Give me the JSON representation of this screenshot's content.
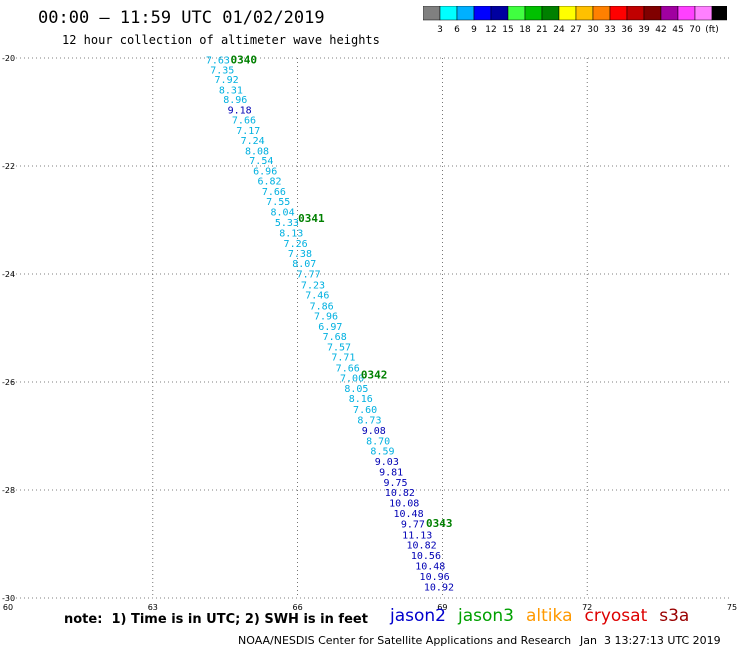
{
  "header": {
    "title": "00:00 – 11:59 UTC 01/02/2019",
    "subtitle": "12 hour collection of altimeter wave heights"
  },
  "legend": {
    "colors": [
      "#808080",
      "#00ffff",
      "#00b0ff",
      "#0000ff",
      "#0000a0",
      "#40ff40",
      "#00c000",
      "#008000",
      "#ffff00",
      "#ffc000",
      "#ff8000",
      "#ff0000",
      "#c00000",
      "#800000",
      "#a000a0",
      "#ff40ff",
      "#ff80ff",
      "#000000"
    ],
    "labels": [
      "3",
      "6",
      "9",
      "12",
      "15",
      "18",
      "21",
      "24",
      "27",
      "30",
      "33",
      "36",
      "39",
      "42",
      "45",
      "70",
      "(ft)"
    ]
  },
  "chart_data": {
    "type": "scatter",
    "xlim": [
      60,
      75
    ],
    "ylim": [
      -30,
      -20
    ],
    "x_ticks": [
      60,
      63,
      66,
      69,
      72,
      75
    ],
    "y_ticks": [
      -20,
      -22,
      -24,
      -26,
      -28,
      -30
    ],
    "grid": true,
    "points": [
      {
        "x": 64.1,
        "y": -20.03,
        "v": "7.63"
      },
      {
        "x": 64.19,
        "y": -20.21,
        "v": "7.35"
      },
      {
        "x": 64.28,
        "y": -20.39,
        "v": "7.92"
      },
      {
        "x": 64.37,
        "y": -20.58,
        "v": "8.31"
      },
      {
        "x": 64.46,
        "y": -20.76,
        "v": "8.96"
      },
      {
        "x": 64.55,
        "y": -20.95,
        "v": "9.18"
      },
      {
        "x": 64.64,
        "y": -21.14,
        "v": "7.66"
      },
      {
        "x": 64.73,
        "y": -21.33,
        "v": "7.17"
      },
      {
        "x": 64.82,
        "y": -21.52,
        "v": "7.24"
      },
      {
        "x": 64.91,
        "y": -21.71,
        "v": "8.08"
      },
      {
        "x": 65.0,
        "y": -21.89,
        "v": "7.54"
      },
      {
        "x": 65.08,
        "y": -22.08,
        "v": "6.96"
      },
      {
        "x": 65.17,
        "y": -22.27,
        "v": "6.82"
      },
      {
        "x": 65.26,
        "y": -22.46,
        "v": "7.66"
      },
      {
        "x": 65.35,
        "y": -22.65,
        "v": "7.55"
      },
      {
        "x": 65.44,
        "y": -22.84,
        "v": "8.04"
      },
      {
        "x": 65.53,
        "y": -23.04,
        "v": "5.33"
      },
      {
        "x": 65.62,
        "y": -23.23,
        "v": "8.13"
      },
      {
        "x": 65.71,
        "y": -23.43,
        "v": "7.26"
      },
      {
        "x": 65.8,
        "y": -23.61,
        "v": "7.38"
      },
      {
        "x": 65.89,
        "y": -23.8,
        "v": "8.07"
      },
      {
        "x": 65.98,
        "y": -23.99,
        "v": "7.77"
      },
      {
        "x": 66.07,
        "y": -24.19,
        "v": "7.23"
      },
      {
        "x": 66.16,
        "y": -24.38,
        "v": "7.46"
      },
      {
        "x": 66.25,
        "y": -24.58,
        "v": "7.86"
      },
      {
        "x": 66.34,
        "y": -24.77,
        "v": "7.96"
      },
      {
        "x": 66.43,
        "y": -24.96,
        "v": "6.97"
      },
      {
        "x": 66.52,
        "y": -25.15,
        "v": "7.68"
      },
      {
        "x": 66.61,
        "y": -25.34,
        "v": "7.57"
      },
      {
        "x": 66.7,
        "y": -25.53,
        "v": "7.71"
      },
      {
        "x": 66.79,
        "y": -25.73,
        "v": "7.66"
      },
      {
        "x": 66.88,
        "y": -25.92,
        "v": "7.00"
      },
      {
        "x": 66.97,
        "y": -26.11,
        "v": "8.05"
      },
      {
        "x": 67.06,
        "y": -26.3,
        "v": "8.16"
      },
      {
        "x": 67.15,
        "y": -26.5,
        "v": "7.60"
      },
      {
        "x": 67.24,
        "y": -26.69,
        "v": "8.73"
      },
      {
        "x": 67.33,
        "y": -26.89,
        "v": "9.08"
      },
      {
        "x": 67.42,
        "y": -27.08,
        "v": "8.70"
      },
      {
        "x": 67.51,
        "y": -27.27,
        "v": "8.59"
      },
      {
        "x": 67.6,
        "y": -27.46,
        "v": "9.03"
      },
      {
        "x": 67.69,
        "y": -27.66,
        "v": "9.81"
      },
      {
        "x": 67.78,
        "y": -27.85,
        "v": "9.75"
      },
      {
        "x": 67.87,
        "y": -28.04,
        "v": "10.82"
      },
      {
        "x": 67.96,
        "y": -28.23,
        "v": "10.08"
      },
      {
        "x": 68.05,
        "y": -28.43,
        "v": "10.48"
      },
      {
        "x": 68.14,
        "y": -28.62,
        "v": "9.77"
      },
      {
        "x": 68.23,
        "y": -28.82,
        "v": "11.13"
      },
      {
        "x": 68.32,
        "y": -29.01,
        "v": "10.82"
      },
      {
        "x": 68.41,
        "y": -29.2,
        "v": "10.56"
      },
      {
        "x": 68.5,
        "y": -29.4,
        "v": "10.48"
      },
      {
        "x": 68.59,
        "y": -29.59,
        "v": "10.96"
      },
      {
        "x": 68.68,
        "y": -29.79,
        "v": "10.92"
      }
    ],
    "annotations": [
      {
        "text": "0340",
        "x": 64.3,
        "y": -20.03
      },
      {
        "text": "0341",
        "x": 65.7,
        "y": -22.96
      },
      {
        "text": "0342",
        "x": 67.0,
        "y": -25.86
      },
      {
        "text": "0343",
        "x": 68.35,
        "y": -28.61
      }
    ]
  },
  "footer": {
    "note": "note:  1) Time is in UTC; 2) SWH is in feet",
    "satellites": [
      {
        "name": "jason2",
        "color": "#0000cc"
      },
      {
        "name": "jason3",
        "color": "#00a000"
      },
      {
        "name": "altika",
        "color": "#ff9900"
      },
      {
        "name": "cryosat",
        "color": "#dd0000"
      },
      {
        "name": "s3a",
        "color": "#990000"
      }
    ],
    "credit": "NOAA/NESDIS Center for Satellite Applications and Research",
    "timestamp": "Jan  3 13:27:13 UTC 2019"
  }
}
